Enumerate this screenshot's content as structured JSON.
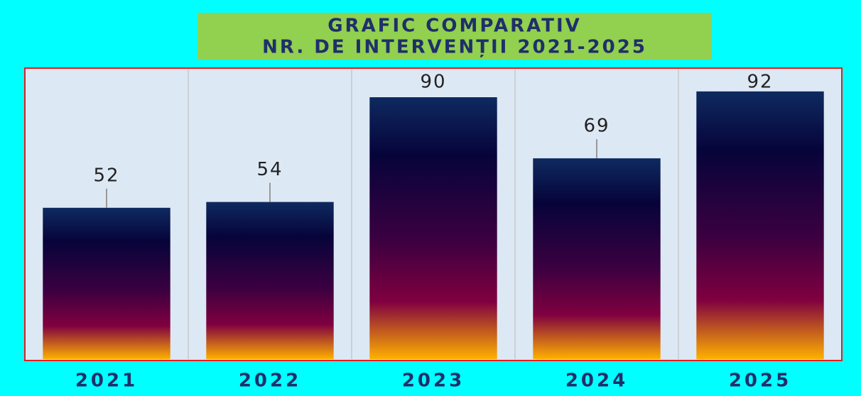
{
  "chart_data": {
    "type": "bar",
    "title": [
      "GRAFIC COMPARATIV",
      "NR. DE INTERVENȚII 2021-2025"
    ],
    "categories": [
      "2021",
      "2022",
      "2023",
      "2024",
      "2025"
    ],
    "values": [
      52,
      54,
      90,
      69,
      92
    ],
    "ylim": [
      0,
      100
    ],
    "colors": [
      "#0e2a60",
      "#06043a",
      "#3c0040",
      "#800040",
      "#ffb000"
    ]
  }
}
